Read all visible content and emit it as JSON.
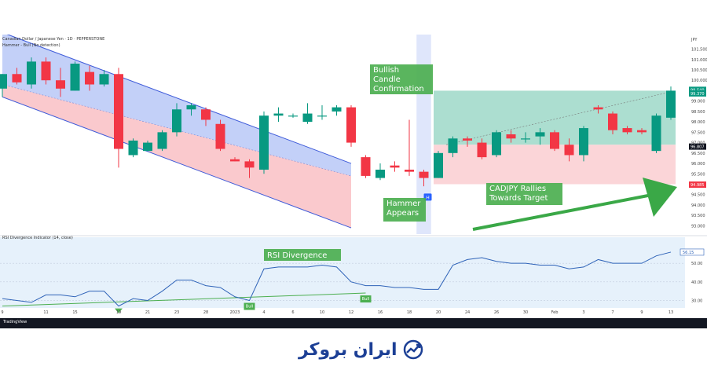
{
  "chart_data": {
    "type": "candlestick",
    "header": {
      "symbol_line": "Canadian Dollar / Japanese Yen · 1D · PEPPERSTONE",
      "indicator_line": "Hammer - Bull (No detection)",
      "currency": "JPY"
    },
    "candles": [
      {
        "x": 0,
        "o": 99.6,
        "h": 100.3,
        "l": 99.2,
        "c": 100.3
      },
      {
        "x": 1,
        "o": 100.3,
        "h": 100.6,
        "l": 99.8,
        "c": 99.9
      },
      {
        "x": 2,
        "o": 99.8,
        "h": 101.1,
        "l": 99.6,
        "c": 100.9
      },
      {
        "x": 3,
        "o": 100.9,
        "h": 101.1,
        "l": 99.8,
        "c": 100.0
      },
      {
        "x": 4,
        "o": 100.0,
        "h": 100.6,
        "l": 99.2,
        "c": 99.6
      },
      {
        "x": 5,
        "o": 99.5,
        "h": 100.9,
        "l": 99.5,
        "c": 100.8
      },
      {
        "x": 6,
        "o": 100.4,
        "h": 100.7,
        "l": 99.5,
        "c": 99.8
      },
      {
        "x": 7,
        "o": 99.8,
        "h": 100.5,
        "l": 99.7,
        "c": 100.3
      },
      {
        "x": 8,
        "o": 100.3,
        "h": 100.6,
        "l": 95.8,
        "c": 96.7
      },
      {
        "x": 9,
        "o": 96.4,
        "h": 97.2,
        "l": 96.3,
        "c": 97.1
      },
      {
        "x": 10,
        "o": 96.6,
        "h": 97.1,
        "l": 96.6,
        "c": 97.0
      },
      {
        "x": 11,
        "o": 96.7,
        "h": 97.6,
        "l": 96.6,
        "c": 97.5
      },
      {
        "x": 12,
        "o": 97.5,
        "h": 98.9,
        "l": 97.3,
        "c": 98.6
      },
      {
        "x": 13,
        "o": 98.6,
        "h": 98.9,
        "l": 98.3,
        "c": 98.8
      },
      {
        "x": 14,
        "o": 98.6,
        "h": 98.7,
        "l": 97.8,
        "c": 98.1
      },
      {
        "x": 15,
        "o": 97.9,
        "h": 98.1,
        "l": 96.6,
        "c": 96.7
      },
      {
        "x": 16,
        "o": 96.2,
        "h": 96.3,
        "l": 96.1,
        "c": 96.1
      },
      {
        "x": 17,
        "o": 96.1,
        "h": 96.2,
        "l": 95.3,
        "c": 95.8
      },
      {
        "x": 18,
        "o": 95.7,
        "h": 98.5,
        "l": 95.5,
        "c": 98.3
      },
      {
        "x": 19,
        "o": 98.3,
        "h": 98.7,
        "l": 98.0,
        "c": 98.4
      },
      {
        "x": 20,
        "o": 98.3,
        "h": 98.4,
        "l": 98.2,
        "c": 98.3
      },
      {
        "x": 21,
        "o": 98.0,
        "h": 98.9,
        "l": 97.9,
        "c": 98.4
      },
      {
        "x": 22,
        "o": 98.3,
        "h": 98.8,
        "l": 98.1,
        "c": 98.3
      },
      {
        "x": 23,
        "o": 98.5,
        "h": 98.8,
        "l": 98.3,
        "c": 98.7
      },
      {
        "x": 24,
        "o": 98.7,
        "h": 98.8,
        "l": 96.8,
        "c": 97.0
      },
      {
        "x": 25,
        "o": 96.3,
        "h": 96.4,
        "l": 95.3,
        "c": 95.4
      },
      {
        "x": 26,
        "o": 95.3,
        "h": 96.0,
        "l": 95.2,
        "c": 95.7
      },
      {
        "x": 27,
        "o": 95.9,
        "h": 96.1,
        "l": 95.6,
        "c": 95.8
      },
      {
        "x": 28,
        "o": 95.7,
        "h": 98.1,
        "l": 95.4,
        "c": 95.6
      },
      {
        "x": 29,
        "o": 95.6,
        "h": 95.7,
        "l": 94.9,
        "c": 95.3
      },
      {
        "x": 30,
        "o": 95.3,
        "h": 96.6,
        "l": 95.3,
        "c": 96.5
      },
      {
        "x": 31,
        "o": 96.5,
        "h": 97.3,
        "l": 96.3,
        "c": 97.2
      },
      {
        "x": 32,
        "o": 97.2,
        "h": 97.3,
        "l": 96.8,
        "c": 97.1
      },
      {
        "x": 33,
        "o": 97.0,
        "h": 97.2,
        "l": 96.2,
        "c": 96.3
      },
      {
        "x": 34,
        "o": 96.4,
        "h": 97.6,
        "l": 96.3,
        "c": 97.5
      },
      {
        "x": 35,
        "o": 97.4,
        "h": 97.6,
        "l": 97.0,
        "c": 97.2
      },
      {
        "x": 36,
        "o": 97.2,
        "h": 97.5,
        "l": 97.0,
        "c": 97.2
      },
      {
        "x": 37,
        "o": 97.3,
        "h": 97.7,
        "l": 96.9,
        "c": 97.5
      },
      {
        "x": 38,
        "o": 97.5,
        "h": 97.6,
        "l": 96.6,
        "c": 96.7
      },
      {
        "x": 39,
        "o": 96.9,
        "h": 97.2,
        "l": 96.1,
        "c": 96.4
      },
      {
        "x": 40,
        "o": 96.4,
        "h": 97.8,
        "l": 96.1,
        "c": 97.7
      },
      {
        "x": 41,
        "o": 98.7,
        "h": 98.8,
        "l": 98.4,
        "c": 98.6
      },
      {
        "x": 42,
        "o": 98.4,
        "h": 98.5,
        "l": 97.4,
        "c": 97.6
      },
      {
        "x": 43,
        "o": 97.7,
        "h": 97.8,
        "l": 97.4,
        "c": 97.5
      },
      {
        "x": 44,
        "o": 97.6,
        "h": 97.7,
        "l": 97.4,
        "c": 97.5
      },
      {
        "x": 45,
        "o": 96.6,
        "h": 98.4,
        "l": 96.5,
        "c": 98.3
      },
      {
        "x": 46,
        "o": 98.2,
        "h": 99.7,
        "l": 98.1,
        "c": 99.5
      }
    ],
    "price_axis": {
      "ticks": [
        "101.500",
        "101.000",
        "100.500",
        "100.000",
        "99.500",
        "99.000",
        "98.500",
        "98.000",
        "97.500",
        "97.000",
        "96.500",
        "96.000",
        "95.500",
        "95.000",
        "94.500",
        "94.000",
        "93.500",
        "93.000"
      ],
      "tick_values": [
        101.5,
        101.0,
        100.5,
        100.0,
        99.5,
        99.0,
        98.5,
        98.0,
        97.5,
        97.0,
        96.5,
        96.0,
        95.5,
        95.0,
        94.5,
        94.0,
        93.5,
        93.0
      ],
      "ylim": [
        92.6,
        102.2
      ],
      "badges": [
        {
          "label": "99.540",
          "value": 99.54,
          "color": "#089981"
        },
        {
          "label": "99.370",
          "value": 99.37,
          "color": "#089981"
        },
        {
          "label": "96.807",
          "value": 96.81,
          "color": "#131722"
        },
        {
          "label": "94.985",
          "value": 94.98,
          "color": "#f23645"
        }
      ]
    },
    "date_axis": {
      "labels": [
        "9",
        "11",
        "15",
        "19",
        "21",
        "23",
        "28",
        "2023",
        "4",
        "6",
        "10",
        "12",
        "16",
        "18",
        "20",
        "24",
        "26",
        "30",
        "Feb",
        "3",
        "7",
        "9",
        "13"
      ],
      "at_x": [
        0,
        3,
        5,
        8,
        10,
        12,
        14,
        16,
        18,
        20,
        22,
        24,
        26,
        28,
        30,
        32,
        34,
        36,
        38,
        40,
        42,
        44,
        46
      ]
    },
    "channel": {
      "upper_from": {
        "x": 0,
        "y": 102.3
      },
      "upper_to": {
        "x": 24,
        "y": 96.0
      },
      "mid_from": {
        "x": 0,
        "y": 99.8
      },
      "mid_to": {
        "x": 24,
        "y": 95.4
      },
      "lower_from": {
        "x": 0,
        "y": 99.2
      },
      "lower_to": {
        "x": 24,
        "y": 92.9
      }
    },
    "highlight_band": {
      "x_from": 28.5,
      "x_to": 29.5
    },
    "target": {
      "x_from": 30,
      "x_to": 46,
      "entry": 96.9,
      "target_price": 99.5,
      "stop": 95.0
    },
    "annotations": [
      {
        "text": "Bullish Candle Confirmation",
        "lines": [
          "Bullish",
          "Candle",
          "Confirmation"
        ]
      },
      {
        "text": "Hammer Appears",
        "lines": [
          "Hammer",
          "Appears"
        ]
      },
      {
        "text": "CADJPY Rallies Towards Target",
        "lines": [
          "CADJPY Rallies",
          "Towards Target"
        ]
      },
      {
        "text": "RSI Divergence",
        "lines": [
          "RSI Divergence"
        ]
      }
    ],
    "hammer_marker": "H",
    "rsi": {
      "title": "RSI Divergence Indicator (14, close)",
      "value_label": "56.15",
      "levels": [
        {
          "label": "50.00",
          "value": 50
        },
        {
          "label": "40.00",
          "value": 40
        },
        {
          "label": "30.00",
          "value": 30
        }
      ],
      "ylim": [
        26,
        64
      ],
      "values": [
        31,
        30,
        29,
        33,
        33,
        32,
        35,
        35,
        27,
        31,
        30,
        35,
        41,
        41,
        38,
        37,
        32,
        30,
        47,
        48,
        48,
        48,
        49,
        48,
        40,
        38,
        38,
        37,
        37,
        36,
        36,
        49,
        52,
        53,
        51,
        50,
        50,
        49,
        49,
        47,
        48,
        52,
        50,
        50,
        50,
        54,
        56
      ],
      "bull_labels": [
        "Bull",
        "Bull"
      ],
      "divergence_line": {
        "x_from": 0,
        "y_from": 27,
        "x_to": 25,
        "y_to": 34
      }
    }
  },
  "footer": {
    "logo": "TradingView"
  },
  "brand": {
    "text": "ایران بروکر"
  }
}
